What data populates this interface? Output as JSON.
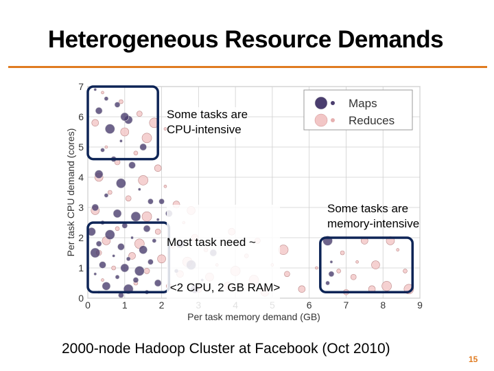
{
  "slide": {
    "title": "Heterogeneous Resource Demands",
    "caption": "2000-node Hadoop Cluster at Facebook (Oct 2010)",
    "page_number": "15",
    "accent_color": "#e07b20",
    "highlight_color": "#0d2456"
  },
  "callouts": {
    "cpu_line1": "Some tasks are",
    "cpu_line2": "CPU-intensive",
    "common_line1": "Most task need ~",
    "common_line2": " <2 CPU, 2 GB RAM>",
    "mem_line1": "Some tasks are",
    "mem_line2": "memory-intensive"
  },
  "chart_data": {
    "type": "scatter",
    "xlabel": "Per task memory demand (GB)",
    "ylabel": "Per task CPU demand (cores)",
    "xlim": [
      0,
      9
    ],
    "ylim": [
      0,
      7
    ],
    "x_ticks": [
      "0",
      "1",
      "2",
      "3",
      "4",
      "5",
      "6",
      "7",
      "8",
      "9"
    ],
    "y_ticks": [
      "0",
      "1",
      "2",
      "3",
      "4",
      "5",
      "6",
      "7"
    ],
    "grid": true,
    "legend_position": "top-right",
    "series": [
      {
        "name": "Maps",
        "color": "#4a3d6e",
        "points": [
          [
            0.2,
            6.9
          ],
          [
            0.5,
            6.6
          ],
          [
            0.8,
            6.4
          ],
          [
            0.3,
            6.2
          ],
          [
            1.1,
            5.9
          ],
          [
            0.6,
            5.6
          ],
          [
            0.9,
            5.2
          ],
          [
            0.4,
            4.9
          ],
          [
            0.7,
            4.6
          ],
          [
            1.2,
            4.4
          ],
          [
            0.3,
            4.1
          ],
          [
            0.9,
            3.8
          ],
          [
            1.4,
            3.6
          ],
          [
            0.5,
            3.4
          ],
          [
            1.7,
            3.2
          ],
          [
            0.2,
            3.0
          ],
          [
            0.8,
            2.8
          ],
          [
            1.3,
            2.7
          ],
          [
            1.9,
            2.6
          ],
          [
            0.4,
            2.5
          ],
          [
            1.0,
            2.4
          ],
          [
            1.6,
            2.3
          ],
          [
            0.1,
            2.2
          ],
          [
            0.6,
            2.1
          ],
          [
            1.2,
            2.0
          ],
          [
            1.8,
            1.9
          ],
          [
            0.3,
            1.8
          ],
          [
            0.9,
            1.7
          ],
          [
            1.5,
            1.6
          ],
          [
            0.2,
            1.5
          ],
          [
            0.7,
            1.4
          ],
          [
            1.1,
            1.3
          ],
          [
            1.7,
            1.2
          ],
          [
            0.4,
            1.1
          ],
          [
            1.0,
            1.0
          ],
          [
            1.4,
            0.9
          ],
          [
            0.2,
            0.8
          ],
          [
            0.8,
            0.7
          ],
          [
            1.3,
            0.6
          ],
          [
            1.9,
            0.5
          ],
          [
            0.5,
            0.4
          ],
          [
            1.1,
            0.3
          ],
          [
            0.3,
            0.2
          ],
          [
            1.6,
            0.2
          ],
          [
            0.9,
            0.1
          ],
          [
            2.2,
            2.8
          ],
          [
            2.5,
            1.8
          ],
          [
            2.8,
            1.1
          ],
          [
            3.1,
            0.6
          ],
          [
            2.4,
            0.9
          ],
          [
            2.0,
            3.2
          ],
          [
            3.4,
            1.5
          ],
          [
            2.9,
            0.3
          ],
          [
            6.5,
            1.9
          ],
          [
            6.6,
            1.2
          ],
          [
            6.5,
            0.5
          ],
          [
            6.6,
            0.8
          ],
          [
            1.5,
            5.0
          ],
          [
            1.0,
            6.0
          ]
        ]
      },
      {
        "name": "Reduces",
        "color": "#f2c6c6",
        "points": [
          [
            0.4,
            6.8
          ],
          [
            0.9,
            6.5
          ],
          [
            1.4,
            6.1
          ],
          [
            0.2,
            5.8
          ],
          [
            1.0,
            5.5
          ],
          [
            1.6,
            5.3
          ],
          [
            0.5,
            5.0
          ],
          [
            1.3,
            4.8
          ],
          [
            0.8,
            4.5
          ],
          [
            1.9,
            4.3
          ],
          [
            0.3,
            4.0
          ],
          [
            1.5,
            3.9
          ],
          [
            2.1,
            3.7
          ],
          [
            0.6,
            3.5
          ],
          [
            1.1,
            3.3
          ],
          [
            2.4,
            3.1
          ],
          [
            0.2,
            2.9
          ],
          [
            1.6,
            2.7
          ],
          [
            2.6,
            2.5
          ],
          [
            0.8,
            2.3
          ],
          [
            1.9,
            2.2
          ],
          [
            2.9,
            2.0
          ],
          [
            0.5,
            1.9
          ],
          [
            1.4,
            1.8
          ],
          [
            2.3,
            1.7
          ],
          [
            3.2,
            1.6
          ],
          [
            0.3,
            1.5
          ],
          [
            1.2,
            1.4
          ],
          [
            2.0,
            1.3
          ],
          [
            2.7,
            1.2
          ],
          [
            3.5,
            1.1
          ],
          [
            0.7,
            1.0
          ],
          [
            1.6,
            0.9
          ],
          [
            2.5,
            0.8
          ],
          [
            3.3,
            0.7
          ],
          [
            4.0,
            0.9
          ],
          [
            0.4,
            0.6
          ],
          [
            1.3,
            0.5
          ],
          [
            2.2,
            0.4
          ],
          [
            3.0,
            0.3
          ],
          [
            3.8,
            0.4
          ],
          [
            4.5,
            0.6
          ],
          [
            5.0,
            1.1
          ],
          [
            4.3,
            1.4
          ],
          [
            5.4,
            0.8
          ],
          [
            5.8,
            0.3
          ],
          [
            4.8,
            0.2
          ],
          [
            5.3,
            1.6
          ],
          [
            6.2,
            1.0
          ],
          [
            6.9,
            1.5
          ],
          [
            7.2,
            0.7
          ],
          [
            7.5,
            1.9
          ],
          [
            7.8,
            1.1
          ],
          [
            8.1,
            0.4
          ],
          [
            8.4,
            1.6
          ],
          [
            8.6,
            0.9
          ],
          [
            7.0,
            0.2
          ],
          [
            7.7,
            0.3
          ],
          [
            8.2,
            1.9
          ],
          [
            8.7,
            0.3
          ],
          [
            7.3,
            1.2
          ],
          [
            6.8,
            0.9
          ],
          [
            4.6,
            1.9
          ],
          [
            3.9,
            2.2
          ],
          [
            2.8,
            2.9
          ],
          [
            1.8,
            5.8
          ],
          [
            2.1,
            5.6
          ]
        ]
      }
    ],
    "highlight_boxes": [
      {
        "label": "cpu-intensive",
        "x": [
          0,
          1.9
        ],
        "y": [
          4.6,
          7.0
        ]
      },
      {
        "label": "common",
        "x": [
          0,
          2.2
        ],
        "y": [
          0.2,
          2.5
        ]
      },
      {
        "label": "memory-intensive",
        "x": [
          6.3,
          8.8
        ],
        "y": [
          0.2,
          2.0
        ]
      }
    ]
  }
}
